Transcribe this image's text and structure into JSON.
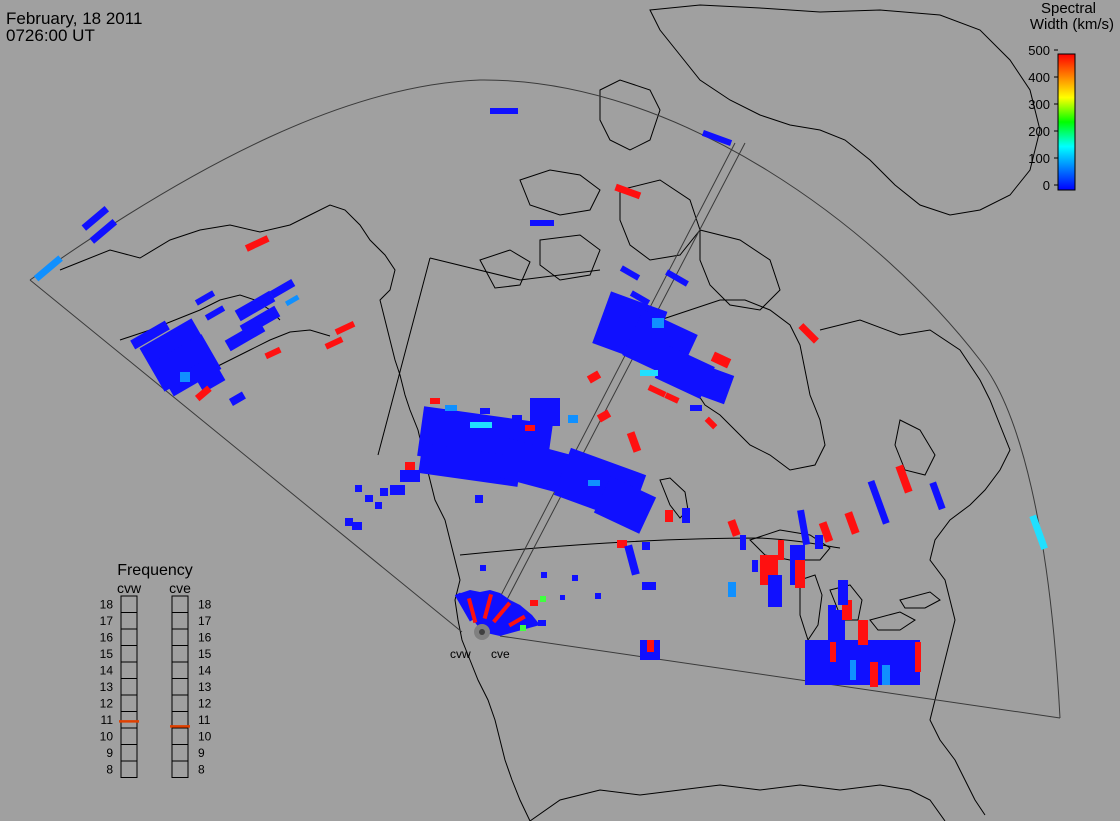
{
  "header": {
    "date": "February, 18 2011",
    "time": "0726:00 UT"
  },
  "colorbar": {
    "title_line1": "Spectral",
    "title_line2": "Width (km/s)",
    "ticks": [
      "500",
      "400",
      "300",
      "200",
      "100",
      "0"
    ],
    "scale": [
      "#0000ff",
      "#00a0ff",
      "#00ffff",
      "#00ff00",
      "#ffff00",
      "#ff8000",
      "#ff0000"
    ]
  },
  "radars": {
    "west": "cvw",
    "east": "cve"
  },
  "frequency_panel": {
    "title": "Frequency",
    "col_west": "cvw",
    "col_east": "cve",
    "levels": [
      "18",
      "17",
      "16",
      "15",
      "14",
      "13",
      "12",
      "11",
      "10",
      "9",
      "8"
    ],
    "cvw_mhz": 10.9,
    "cve_mhz": 10.6,
    "marker_color": "#e04000"
  },
  "colors": {
    "background": "#a0a0a0",
    "low_width": "#1010ff",
    "mid_width": "#1090ff",
    "cyan_width": "#20e0ff",
    "high_width": "#ff1010",
    "green_width": "#40ff40"
  }
}
